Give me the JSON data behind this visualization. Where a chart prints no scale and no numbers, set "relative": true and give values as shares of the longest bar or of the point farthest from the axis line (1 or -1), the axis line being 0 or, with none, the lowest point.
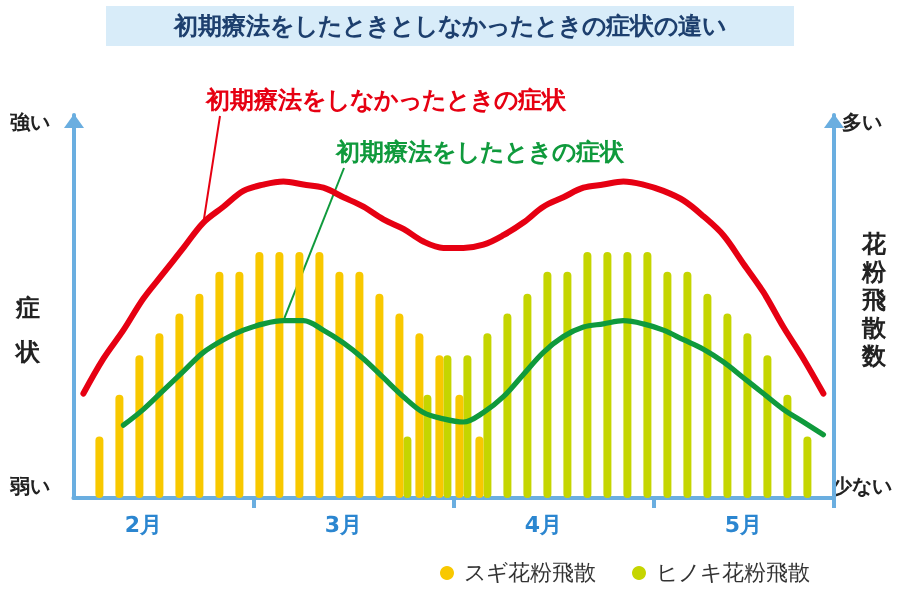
{
  "chart_data": {
    "type": "line",
    "relative": true,
    "title": "初期療法をしたときとしなかったときの症状の違い",
    "ylabel": "症状",
    "y2label": "花粉飛散数",
    "annotations": [
      "強い",
      "弱い",
      "多い",
      "少ない"
    ],
    "categories": [
      null,
      null,
      null,
      "2月",
      null,
      null,
      null,
      null,
      null,
      null,
      null,
      null,
      null,
      "3月",
      null,
      null,
      null,
      null,
      null,
      null,
      null,
      null,
      null,
      "4月",
      null,
      null,
      null,
      null,
      null,
      null,
      null,
      null,
      null,
      "5月",
      null,
      null,
      null,
      null
    ],
    "legend": "bottom right",
    "series": [
      {
        "name": "初期療法をしなかったときの症状",
        "color": "#e60012",
        "values": [
          0.33,
          0.44,
          0.53,
          0.63,
          0.71,
          0.79,
          0.87,
          0.92,
          0.97,
          0.99,
          1,
          0.99,
          0.98,
          0.95,
          0.92,
          0.88,
          0.85,
          0.81,
          0.79,
          0.79,
          0.8,
          0.83,
          0.87,
          0.92,
          0.95,
          0.98,
          0.99,
          1,
          0.99,
          0.97,
          0.94,
          0.89,
          0.83,
          0.74,
          0.65,
          0.54,
          0.44,
          0.33
        ]
      },
      {
        "name": "初期療法をしたときの症状",
        "color": "#0f9a3c",
        "values": [
          null,
          null,
          0.23,
          0.28,
          0.34,
          0.4,
          0.46,
          0.5,
          0.53,
          0.55,
          0.56,
          0.56,
          0.53,
          0.49,
          0.44,
          0.38,
          0.32,
          0.27,
          0.25,
          0.24,
          0.27,
          0.32,
          0.39,
          0.46,
          0.51,
          0.54,
          0.55,
          0.56,
          0.55,
          0.53,
          0.5,
          0.47,
          0.43,
          0.38,
          0.33,
          0.28,
          0.24,
          0.2
        ]
      },
      {
        "name": "スギ花粉飛散",
        "type": "bar",
        "axis": "y2",
        "color": "#f8c800",
        "values": [
          null,
          0.25,
          0.42,
          0.58,
          0.67,
          0.75,
          0.83,
          0.92,
          0.92,
          1,
          1,
          1,
          1,
          0.92,
          0.92,
          0.83,
          0.75,
          0.67,
          0.58,
          0.42,
          0.25,
          null,
          null,
          null,
          null,
          null,
          null,
          null,
          null,
          null,
          null,
          null,
          null,
          null,
          null,
          null,
          null,
          null
        ]
      },
      {
        "name": "ヒノキ花粉飛散",
        "type": "bar",
        "axis": "y2",
        "color": "#c5d500",
        "values": [
          null,
          null,
          null,
          null,
          null,
          null,
          null,
          null,
          null,
          null,
          null,
          null,
          null,
          null,
          null,
          null,
          0.25,
          0.42,
          0.58,
          0.58,
          0.67,
          0.75,
          0.83,
          0.92,
          0.92,
          1,
          1,
          1,
          1,
          0.92,
          0.92,
          0.83,
          0.75,
          0.67,
          0.58,
          0.42,
          0.25,
          null
        ]
      }
    ]
  }
}
